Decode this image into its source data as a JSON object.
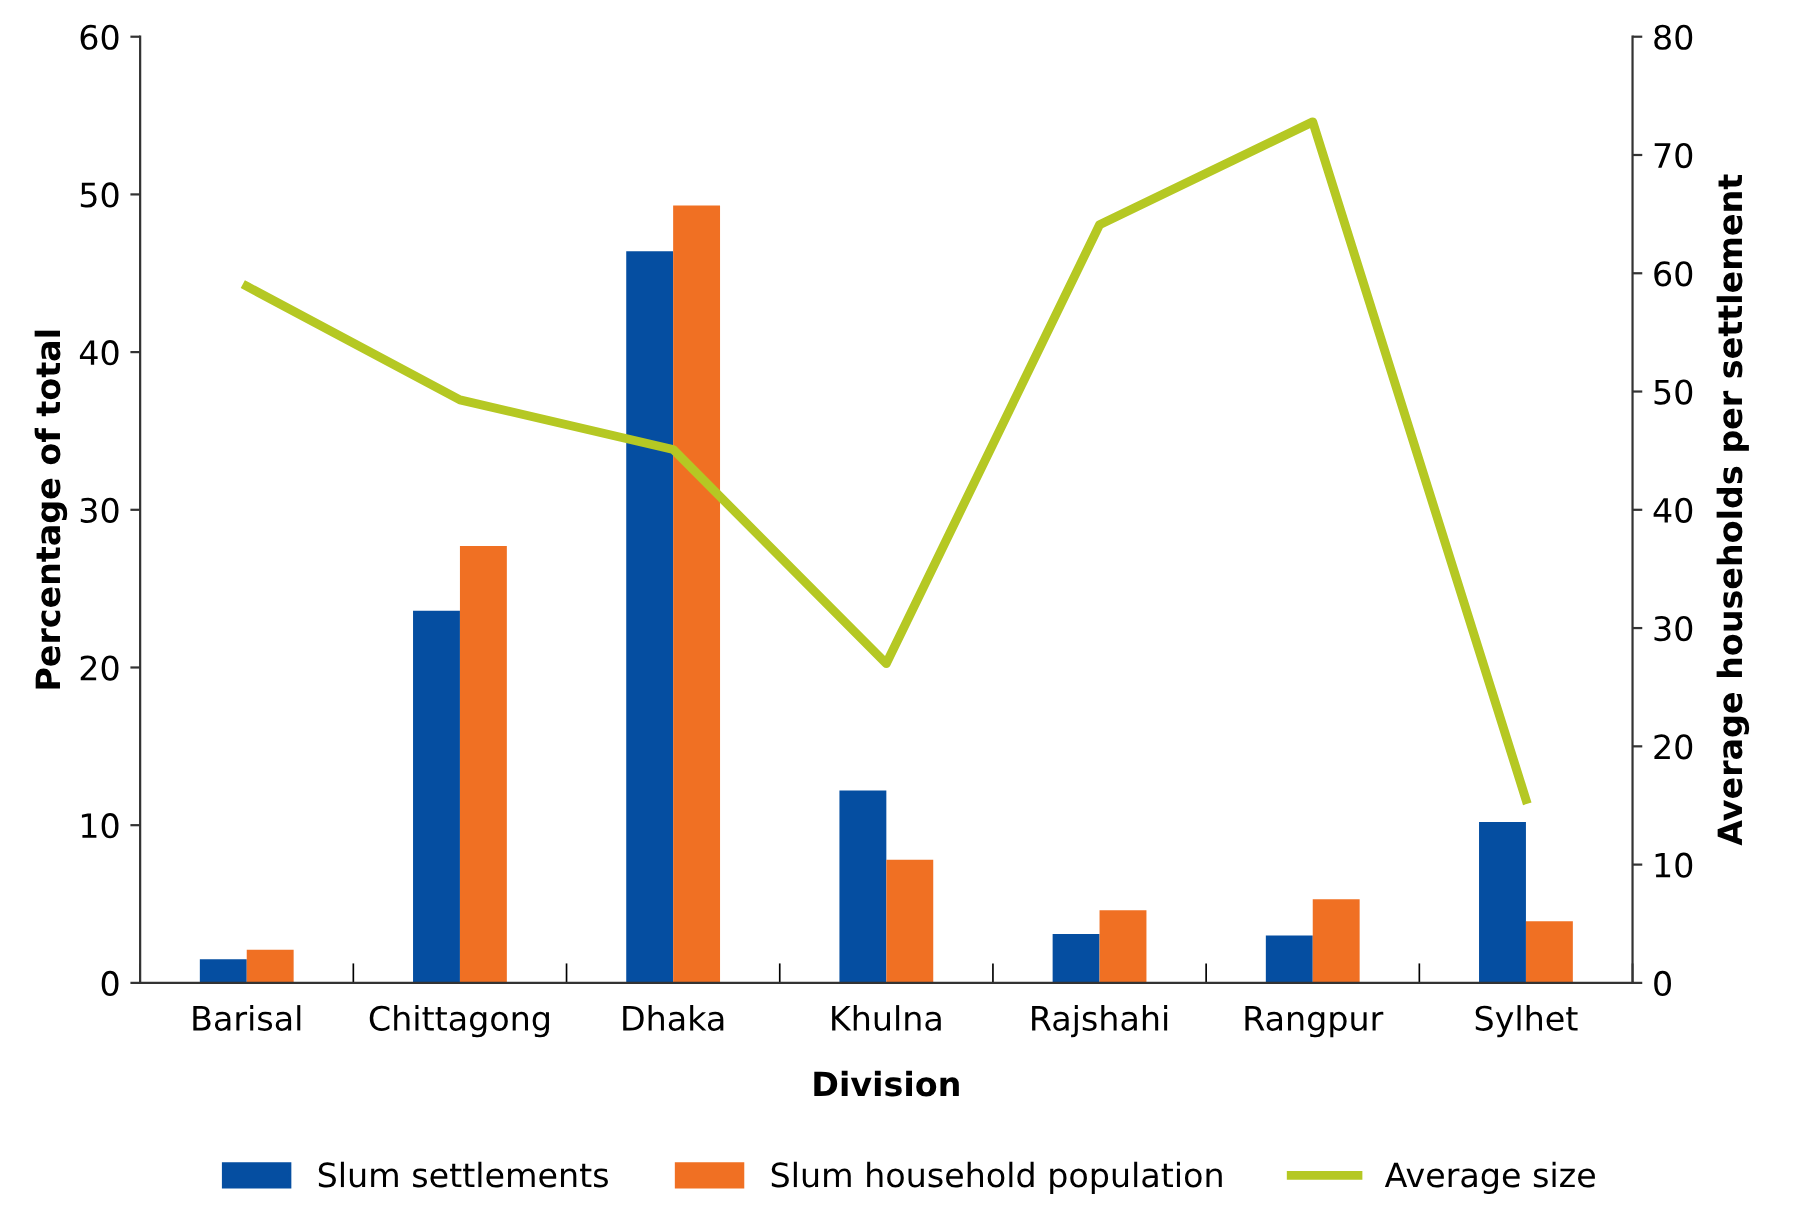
{
  "chart_data": {
    "type": "bar",
    "xlabel": "Division",
    "ylabel": "Percentage of total",
    "y2label": "Average households per settlement",
    "categories": [
      "Barisal",
      "Chittagong",
      "Dhaka",
      "Khulna",
      "Rajshahi",
      "Rangpur",
      "Sylhet"
    ],
    "series": [
      {
        "name": "Slum settlements",
        "color": "#054ea1",
        "values": [
          1.5,
          23.6,
          46.4,
          12.2,
          3.1,
          3.0,
          10.2
        ]
      },
      {
        "name": "Slum household population",
        "color": "#f07023",
        "values": [
          2.1,
          27.7,
          49.3,
          7.8,
          4.6,
          5.3,
          3.9
        ]
      },
      {
        "name": "Average size",
        "type": "line",
        "axis": "y2",
        "color": "#b5c823",
        "values": [
          58.9,
          49.3,
          45.1,
          27.0,
          64.1,
          72.8,
          15.5
        ]
      }
    ],
    "ylim": [
      0,
      60
    ],
    "yticks": [
      0,
      10,
      20,
      30,
      40,
      50,
      60
    ],
    "y2lim": [
      0,
      80
    ],
    "y2ticks": [
      0,
      10,
      20,
      30,
      40,
      50,
      60,
      70,
      80
    ],
    "grid": false,
    "legend": "bottom"
  }
}
